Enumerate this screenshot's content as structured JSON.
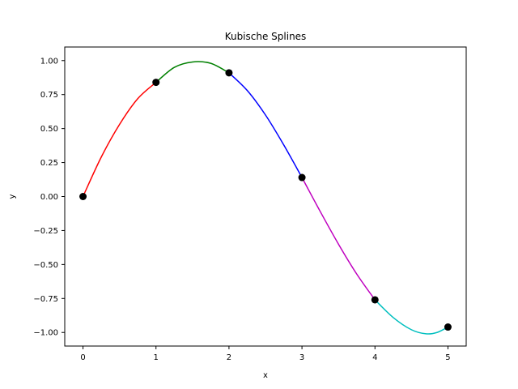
{
  "chart_data": {
    "type": "line",
    "title": "Kubische Splines",
    "xlabel": "x",
    "ylabel": "y",
    "xlim": [
      -0.25,
      5.25
    ],
    "ylim": [
      -1.1,
      1.1
    ],
    "x_ticks": [
      0,
      1,
      2,
      3,
      4,
      5
    ],
    "x_tick_labels": [
      "0",
      "1",
      "2",
      "3",
      "4",
      "5"
    ],
    "y_ticks": [
      -1.0,
      -0.75,
      -0.5,
      -0.25,
      0.0,
      0.25,
      0.5,
      0.75,
      1.0
    ],
    "y_tick_labels": [
      "−1.00",
      "−0.75",
      "−0.50",
      "−0.25",
      "0.00",
      "0.25",
      "0.50",
      "0.75",
      "1.00"
    ],
    "grid": false,
    "legend": "none",
    "knots": {
      "x": [
        0,
        1,
        2,
        3,
        4,
        5
      ],
      "y": [
        0.0,
        0.84,
        0.91,
        0.14,
        -0.76,
        -0.96
      ],
      "color": "#000000"
    },
    "series": [
      {
        "x": [
          0,
          0.25,
          0.5,
          0.75,
          1.0
        ],
        "y": [
          0.0,
          0.29,
          0.53,
          0.72,
          0.84
        ],
        "color": "#ff0000"
      },
      {
        "x": [
          1.0,
          1.25,
          1.5,
          1.75,
          2.0
        ],
        "y": [
          0.84,
          0.95,
          0.99,
          0.98,
          0.91
        ],
        "color": "#008000"
      },
      {
        "x": [
          2.0,
          2.25,
          2.5,
          2.75,
          3.0
        ],
        "y": [
          0.91,
          0.78,
          0.6,
          0.38,
          0.14
        ],
        "color": "#0000ff"
      },
      {
        "x": [
          3.0,
          3.25,
          3.5,
          3.75,
          4.0
        ],
        "y": [
          0.14,
          -0.11,
          -0.35,
          -0.57,
          -0.76
        ],
        "color": "#bf00bf"
      },
      {
        "x": [
          4.0,
          4.25,
          4.5,
          4.7,
          4.85,
          5.0
        ],
        "y": [
          -0.76,
          -0.89,
          -0.98,
          -1.01,
          -1.0,
          -0.96
        ],
        "color": "#00bfbf"
      }
    ]
  }
}
